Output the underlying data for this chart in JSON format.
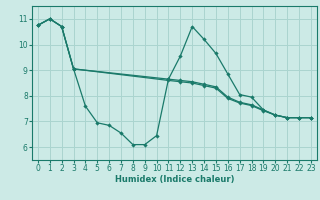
{
  "bg_color": "#cceae6",
  "grid_color": "#aad4cf",
  "line_color": "#1a7a6a",
  "xlabel": "Humidex (Indice chaleur)",
  "xlim": [
    -0.5,
    23.5
  ],
  "ylim": [
    5.5,
    11.5
  ],
  "yticks": [
    6,
    7,
    8,
    9,
    10,
    11
  ],
  "xticks": [
    0,
    1,
    2,
    3,
    4,
    5,
    6,
    7,
    8,
    9,
    10,
    11,
    12,
    13,
    14,
    15,
    16,
    17,
    18,
    19,
    20,
    21,
    22,
    23
  ],
  "line1_x": [
    0,
    1,
    2,
    3,
    4,
    5,
    6,
    7,
    8,
    9,
    10,
    11,
    12,
    13,
    14,
    15,
    16,
    17,
    18,
    19,
    20,
    21,
    22,
    23
  ],
  "line1_y": [
    10.75,
    11.0,
    10.7,
    9.05,
    7.6,
    6.95,
    6.85,
    6.55,
    6.1,
    6.1,
    6.45,
    8.65,
    9.55,
    10.7,
    10.2,
    9.65,
    8.85,
    8.05,
    7.95,
    7.45,
    7.25,
    7.15,
    7.15,
    7.15
  ],
  "line2_x": [
    0,
    1,
    2,
    3,
    11,
    12,
    13,
    14,
    15,
    16,
    17,
    18,
    19,
    20,
    21,
    22,
    23
  ],
  "line2_y": [
    10.75,
    11.0,
    10.7,
    9.05,
    8.65,
    8.6,
    8.55,
    8.45,
    8.35,
    7.95,
    7.75,
    7.65,
    7.45,
    7.25,
    7.15,
    7.15,
    7.15
  ],
  "line3_x": [
    0,
    1,
    2,
    3,
    11,
    12,
    13,
    14,
    15,
    16,
    17,
    18,
    19,
    20,
    21,
    22,
    23
  ],
  "line3_y": [
    10.75,
    11.0,
    10.7,
    9.05,
    8.6,
    8.55,
    8.5,
    8.4,
    8.3,
    7.9,
    7.72,
    7.62,
    7.42,
    7.25,
    7.15,
    7.15,
    7.15
  ]
}
